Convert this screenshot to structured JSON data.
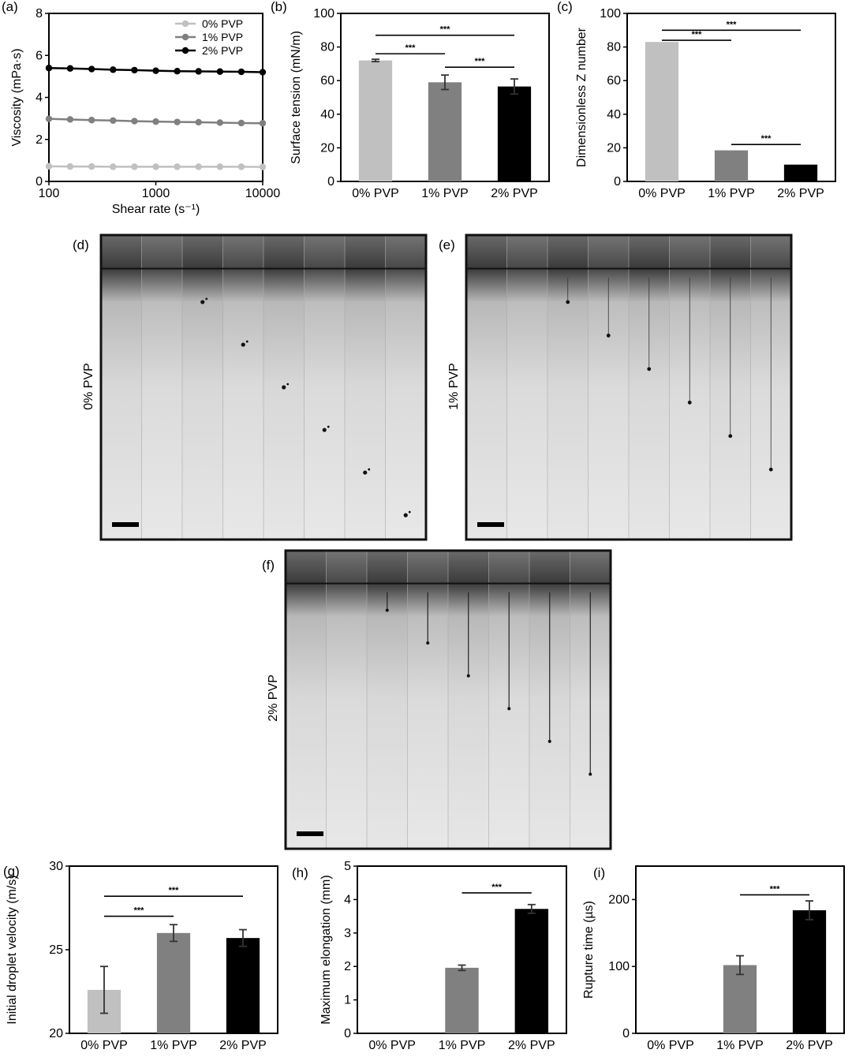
{
  "colors": {
    "pvp0": "#c0c0c0",
    "pvp1": "#808080",
    "pvp2": "#000000"
  },
  "panels": {
    "a": {
      "label": "(a)"
    },
    "b": {
      "label": "(b)"
    },
    "c": {
      "label": "(c)"
    },
    "d": {
      "label": "(d)",
      "row_label": "0% PVP"
    },
    "e": {
      "label": "(e)",
      "row_label": "1% PVP"
    },
    "f": {
      "label": "(f)",
      "row_label": "2% PVP"
    },
    "g": {
      "label": "(g)"
    },
    "h": {
      "label": "(h)"
    },
    "i": {
      "label": "(i)"
    }
  },
  "chart_data": [
    {
      "id": "a",
      "type": "line",
      "xlabel": "Shear rate (s⁻¹)",
      "ylabel": "Viscosity (mPa·s)",
      "xscale": "log",
      "xlim": [
        100,
        10000
      ],
      "ylim": [
        0,
        8
      ],
      "xticks": [
        "100",
        "1000",
        "10000"
      ],
      "yticks": [
        "0",
        "2",
        "4",
        "6",
        "8"
      ],
      "legend_position": "top-right",
      "x": [
        100,
        158,
        251,
        398,
        631,
        1000,
        1585,
        2512,
        3981,
        6310,
        10000
      ],
      "series": [
        {
          "name": "0% PVP",
          "values": [
            0.72,
            0.71,
            0.71,
            0.7,
            0.7,
            0.7,
            0.7,
            0.7,
            0.7,
            0.7,
            0.69
          ]
        },
        {
          "name": "1% PVP",
          "values": [
            2.98,
            2.95,
            2.92,
            2.9,
            2.87,
            2.85,
            2.83,
            2.82,
            2.8,
            2.78,
            2.77
          ]
        },
        {
          "name": "2% PVP",
          "values": [
            5.4,
            5.38,
            5.35,
            5.32,
            5.3,
            5.27,
            5.25,
            5.24,
            5.23,
            5.22,
            5.2
          ]
        }
      ]
    },
    {
      "id": "b",
      "type": "bar",
      "ylabel": "Surface tension (mN/m)",
      "ylim": [
        0,
        100
      ],
      "yticks": [
        "0",
        "20",
        "40",
        "60",
        "80",
        "100"
      ],
      "categories": [
        "0% PVP",
        "1% PVP",
        "2% PVP"
      ],
      "values": [
        72,
        59,
        56.5
      ],
      "errors": [
        0.7,
        4.3,
        4.5
      ],
      "significance": [
        {
          "from": 0,
          "to": 1,
          "y": 76,
          "label": "***"
        },
        {
          "from": 1,
          "to": 2,
          "y": 68,
          "label": "***"
        },
        {
          "from": 0,
          "to": 2,
          "y": 87,
          "label": "***"
        }
      ]
    },
    {
      "id": "c",
      "type": "bar",
      "ylabel": "Dimensionless Z number",
      "ylim": [
        0,
        100
      ],
      "yticks": [
        "0",
        "20",
        "40",
        "60",
        "80",
        "100"
      ],
      "categories": [
        "0% PVP",
        "1% PVP",
        "2% PVP"
      ],
      "values": [
        83,
        18.5,
        10
      ],
      "errors": [
        0,
        0,
        0
      ],
      "significance": [
        {
          "from": 0,
          "to": 1,
          "y": 84,
          "label": "***"
        },
        {
          "from": 0,
          "to": 2,
          "y": 90,
          "label": "***"
        },
        {
          "from": 1,
          "to": 2,
          "y": 22,
          "label": "***"
        }
      ]
    },
    {
      "id": "g",
      "type": "bar",
      "ylabel": "Initial droplet velocity (m/s)",
      "ylim": [
        20,
        30
      ],
      "yticks": [
        "20",
        "25",
        "30"
      ],
      "categories": [
        "0% PVP",
        "1% PVP",
        "2% PVP"
      ],
      "values": [
        22.6,
        26.0,
        25.7
      ],
      "errors": [
        1.4,
        0.5,
        0.5
      ],
      "significance": [
        {
          "from": 0,
          "to": 1,
          "y": 27.0,
          "label": "***"
        },
        {
          "from": 0,
          "to": 2,
          "y": 28.2,
          "label": "***"
        }
      ]
    },
    {
      "id": "h",
      "type": "bar",
      "ylabel": "Maximum elongation (mm)",
      "ylim": [
        0,
        5
      ],
      "yticks": [
        "0",
        "1",
        "2",
        "3",
        "4",
        "5"
      ],
      "categories": [
        "0% PVP",
        "1% PVP",
        "2% PVP"
      ],
      "values": [
        0,
        1.96,
        3.72
      ],
      "errors": [
        0,
        0.08,
        0.13
      ],
      "significance": [
        {
          "from": 1,
          "to": 2,
          "y": 4.2,
          "label": "***"
        }
      ]
    },
    {
      "id": "i",
      "type": "bar",
      "ylabel": "Rupture time (µs)",
      "ylim": [
        0,
        250
      ],
      "yticks": [
        "0",
        "100",
        "200"
      ],
      "categories": [
        "0% PVP",
        "1% PVP",
        "2% PVP"
      ],
      "values": [
        0,
        102,
        184
      ],
      "errors": [
        0,
        14,
        14
      ],
      "significance": [
        {
          "from": 1,
          "to": 2,
          "y": 207,
          "label": "***"
        }
      ]
    }
  ]
}
